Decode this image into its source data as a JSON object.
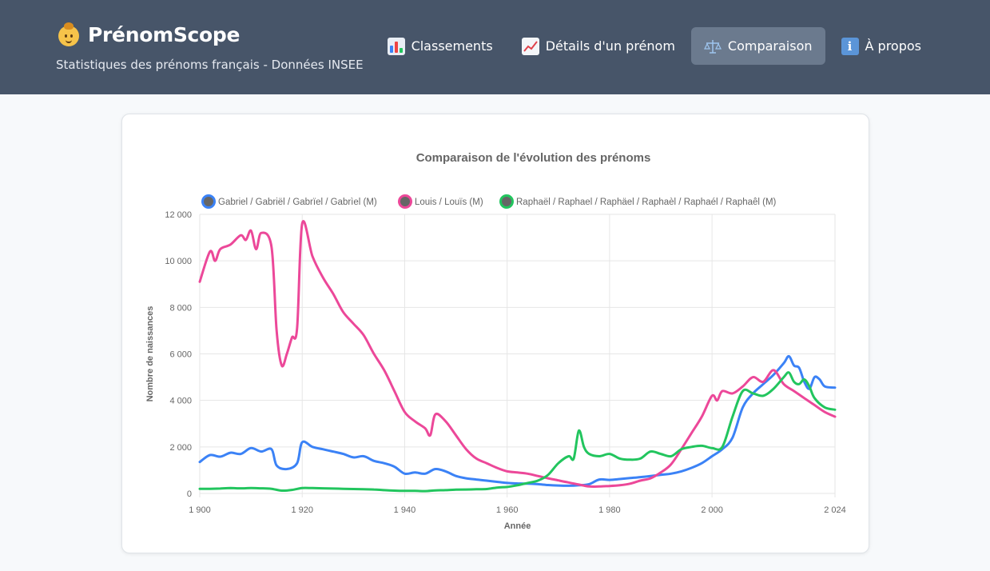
{
  "app": {
    "title": "PrénomScope",
    "subtitle": "Statistiques des prénoms français - Données INSEE",
    "icon": "baby-icon"
  },
  "nav": {
    "items": [
      {
        "label": "Classements",
        "icon": "bar-chart-icon",
        "active": false
      },
      {
        "label": "Détails d'un prénom",
        "icon": "line-chart-icon",
        "active": false
      },
      {
        "label": "Comparaison",
        "icon": "scale-icon",
        "active": true
      },
      {
        "label": "À propos",
        "icon": "info-icon",
        "active": false
      }
    ]
  },
  "colors": {
    "header_bg": "#475569",
    "active_tab": "#6b7a8e",
    "gabriel": "#3b82f6",
    "louis": "#ec4899",
    "raphael": "#22c55e"
  },
  "chart_data": {
    "type": "line",
    "title": "Comparaison de l'évolution des prénoms",
    "xlabel": "Année",
    "ylabel": "Nombre de naissances",
    "xlim": [
      1900,
      2024
    ],
    "ylim": [
      0,
      12000
    ],
    "x_ticks": [
      1900,
      1920,
      1940,
      1960,
      1980,
      2000,
      2024
    ],
    "x_tick_labels": [
      "1 900",
      "1 920",
      "1 940",
      "1 960",
      "1 980",
      "2 000",
      "2 024"
    ],
    "y_ticks": [
      0,
      2000,
      4000,
      6000,
      8000,
      10000,
      12000
    ],
    "y_tick_labels": [
      "0",
      "2 000",
      "4 000",
      "6 000",
      "8 000",
      "10 000",
      "12 000"
    ],
    "grid": true,
    "legend_position": "top",
    "series": [
      {
        "name": "Gabriel / Gabriël / Gabrïel / Gabrìel (M)",
        "color": "#3b82f6",
        "points": [
          [
            1900,
            1350
          ],
          [
            1902,
            1650
          ],
          [
            1904,
            1580
          ],
          [
            1906,
            1750
          ],
          [
            1908,
            1700
          ],
          [
            1910,
            1950
          ],
          [
            1912,
            1800
          ],
          [
            1914,
            1900
          ],
          [
            1915,
            1200
          ],
          [
            1917,
            1050
          ],
          [
            1919,
            1300
          ],
          [
            1920,
            2200
          ],
          [
            1922,
            2000
          ],
          [
            1924,
            1900
          ],
          [
            1926,
            1800
          ],
          [
            1928,
            1700
          ],
          [
            1930,
            1550
          ],
          [
            1932,
            1600
          ],
          [
            1934,
            1400
          ],
          [
            1936,
            1300
          ],
          [
            1938,
            1150
          ],
          [
            1940,
            850
          ],
          [
            1942,
            900
          ],
          [
            1944,
            850
          ],
          [
            1946,
            1050
          ],
          [
            1948,
            950
          ],
          [
            1950,
            750
          ],
          [
            1952,
            650
          ],
          [
            1954,
            600
          ],
          [
            1956,
            550
          ],
          [
            1958,
            500
          ],
          [
            1960,
            450
          ],
          [
            1962,
            430
          ],
          [
            1964,
            420
          ],
          [
            1966,
            400
          ],
          [
            1968,
            360
          ],
          [
            1970,
            340
          ],
          [
            1972,
            330
          ],
          [
            1974,
            350
          ],
          [
            1976,
            400
          ],
          [
            1978,
            600
          ],
          [
            1980,
            580
          ],
          [
            1982,
            620
          ],
          [
            1984,
            660
          ],
          [
            1986,
            700
          ],
          [
            1988,
            750
          ],
          [
            1990,
            800
          ],
          [
            1992,
            850
          ],
          [
            1994,
            950
          ],
          [
            1996,
            1100
          ],
          [
            1998,
            1300
          ],
          [
            2000,
            1600
          ],
          [
            2002,
            1900
          ],
          [
            2004,
            2400
          ],
          [
            2006,
            3700
          ],
          [
            2008,
            4300
          ],
          [
            2010,
            4700
          ],
          [
            2012,
            5100
          ],
          [
            2014,
            5600
          ],
          [
            2015,
            5900
          ],
          [
            2016,
            5500
          ],
          [
            2017,
            5400
          ],
          [
            2018,
            4800
          ],
          [
            2019,
            4500
          ],
          [
            2020,
            5000
          ],
          [
            2021,
            4900
          ],
          [
            2022,
            4600
          ],
          [
            2024,
            4550
          ]
        ]
      },
      {
        "name": "Louis / Louïs (M)",
        "color": "#ec4899",
        "points": [
          [
            1900,
            9100
          ],
          [
            1902,
            10400
          ],
          [
            1903,
            10000
          ],
          [
            1904,
            10500
          ],
          [
            1906,
            10700
          ],
          [
            1908,
            11100
          ],
          [
            1909,
            10900
          ],
          [
            1910,
            11300
          ],
          [
            1911,
            10500
          ],
          [
            1912,
            11200
          ],
          [
            1914,
            10600
          ],
          [
            1915,
            7000
          ],
          [
            1916,
            5500
          ],
          [
            1917,
            6000
          ],
          [
            1918,
            6700
          ],
          [
            1919,
            7100
          ],
          [
            1920,
            11600
          ],
          [
            1922,
            10200
          ],
          [
            1924,
            9300
          ],
          [
            1926,
            8600
          ],
          [
            1928,
            7800
          ],
          [
            1930,
            7300
          ],
          [
            1932,
            6800
          ],
          [
            1934,
            6000
          ],
          [
            1936,
            5300
          ],
          [
            1938,
            4400
          ],
          [
            1940,
            3500
          ],
          [
            1942,
            3100
          ],
          [
            1944,
            2800
          ],
          [
            1945,
            2500
          ],
          [
            1946,
            3400
          ],
          [
            1948,
            3100
          ],
          [
            1950,
            2500
          ],
          [
            1952,
            1900
          ],
          [
            1954,
            1500
          ],
          [
            1956,
            1300
          ],
          [
            1958,
            1100
          ],
          [
            1960,
            950
          ],
          [
            1962,
            900
          ],
          [
            1964,
            850
          ],
          [
            1966,
            750
          ],
          [
            1968,
            650
          ],
          [
            1970,
            560
          ],
          [
            1972,
            470
          ],
          [
            1974,
            380
          ],
          [
            1976,
            300
          ],
          [
            1978,
            300
          ],
          [
            1980,
            320
          ],
          [
            1982,
            350
          ],
          [
            1984,
            420
          ],
          [
            1986,
            550
          ],
          [
            1988,
            650
          ],
          [
            1990,
            900
          ],
          [
            1992,
            1250
          ],
          [
            1994,
            1900
          ],
          [
            1996,
            2600
          ],
          [
            1998,
            3300
          ],
          [
            2000,
            4200
          ],
          [
            2001,
            4000
          ],
          [
            2002,
            4400
          ],
          [
            2004,
            4300
          ],
          [
            2006,
            4600
          ],
          [
            2008,
            5000
          ],
          [
            2010,
            4800
          ],
          [
            2012,
            5300
          ],
          [
            2014,
            4700
          ],
          [
            2016,
            4400
          ],
          [
            2018,
            4100
          ],
          [
            2020,
            3800
          ],
          [
            2022,
            3500
          ],
          [
            2024,
            3300
          ]
        ]
      },
      {
        "name": "Raphaël / Raphael / Raphäel / Raphaèl / Raphaél / Raphaêl (M)",
        "color": "#22c55e",
        "points": [
          [
            1900,
            200
          ],
          [
            1902,
            200
          ],
          [
            1904,
            210
          ],
          [
            1906,
            230
          ],
          [
            1908,
            220
          ],
          [
            1910,
            230
          ],
          [
            1912,
            220
          ],
          [
            1914,
            200
          ],
          [
            1916,
            120
          ],
          [
            1918,
            150
          ],
          [
            1920,
            230
          ],
          [
            1922,
            230
          ],
          [
            1924,
            220
          ],
          [
            1926,
            210
          ],
          [
            1928,
            200
          ],
          [
            1930,
            190
          ],
          [
            1932,
            180
          ],
          [
            1934,
            170
          ],
          [
            1936,
            140
          ],
          [
            1938,
            120
          ],
          [
            1940,
            110
          ],
          [
            1942,
            110
          ],
          [
            1944,
            100
          ],
          [
            1946,
            130
          ],
          [
            1948,
            140
          ],
          [
            1950,
            160
          ],
          [
            1952,
            170
          ],
          [
            1954,
            180
          ],
          [
            1956,
            190
          ],
          [
            1958,
            250
          ],
          [
            1960,
            280
          ],
          [
            1962,
            350
          ],
          [
            1964,
            450
          ],
          [
            1966,
            550
          ],
          [
            1968,
            800
          ],
          [
            1970,
            1300
          ],
          [
            1972,
            1600
          ],
          [
            1973,
            1500
          ],
          [
            1974,
            2700
          ],
          [
            1975,
            2000
          ],
          [
            1976,
            1700
          ],
          [
            1978,
            1600
          ],
          [
            1980,
            1700
          ],
          [
            1982,
            1500
          ],
          [
            1984,
            1450
          ],
          [
            1986,
            1500
          ],
          [
            1988,
            1800
          ],
          [
            1990,
            1700
          ],
          [
            1992,
            1600
          ],
          [
            1994,
            1900
          ],
          [
            1996,
            2000
          ],
          [
            1998,
            2050
          ],
          [
            2000,
            1950
          ],
          [
            2002,
            2000
          ],
          [
            2004,
            3300
          ],
          [
            2006,
            4400
          ],
          [
            2008,
            4300
          ],
          [
            2010,
            4200
          ],
          [
            2012,
            4500
          ],
          [
            2014,
            5000
          ],
          [
            2015,
            5200
          ],
          [
            2016,
            4800
          ],
          [
            2017,
            4700
          ],
          [
            2018,
            4900
          ],
          [
            2019,
            4600
          ],
          [
            2020,
            4100
          ],
          [
            2022,
            3700
          ],
          [
            2024,
            3600
          ]
        ]
      }
    ]
  }
}
